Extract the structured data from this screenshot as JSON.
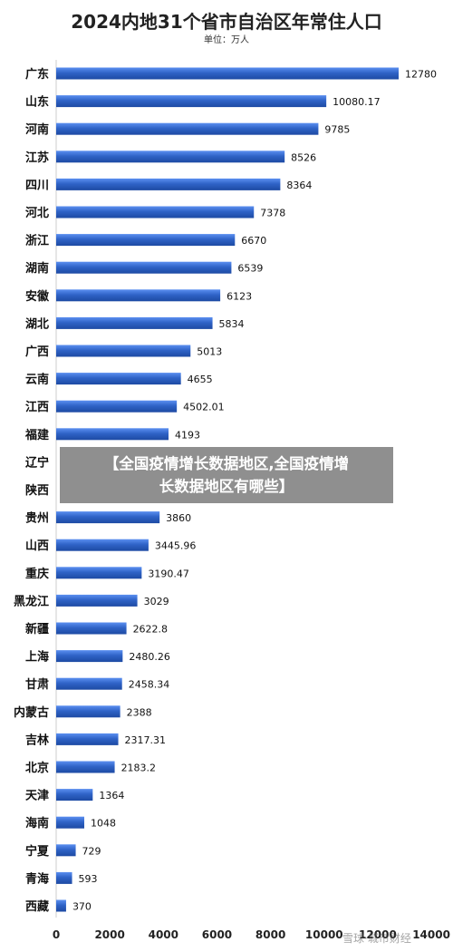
{
  "chart_data": {
    "type": "bar",
    "orientation": "horizontal",
    "title": "2024内地31个省市自治区年常住人口",
    "subtitle": "单位：万人",
    "categories": [
      "广东",
      "山东",
      "河南",
      "江苏",
      "四川",
      "河北",
      "浙江",
      "湖南",
      "安徽",
      "湖北",
      "广西",
      "云南",
      "江西",
      "福建",
      "辽宁",
      "陕西",
      "贵州",
      "山西",
      "重庆",
      "黑龙江",
      "新疆",
      "上海",
      "甘肃",
      "内蒙古",
      "吉林",
      "北京",
      "天津",
      "海南",
      "宁夏",
      "青海",
      "西藏"
    ],
    "values": [
      12780,
      10080.17,
      9785,
      8526,
      8364,
      7378,
      6670,
      6539,
      6123,
      5834,
      5013,
      4655,
      4502.01,
      4193,
      null,
      null,
      3860,
      3445.96,
      3190.47,
      3029,
      2622.8,
      2480.26,
      2458.34,
      2388,
      2317.31,
      2183.2,
      1364,
      1048,
      729,
      593,
      370
    ],
    "value_labels": [
      "12780",
      "10080.17",
      "9785",
      "8526",
      "8364",
      "7378",
      "6670",
      "6539",
      "6123",
      "5834",
      "5013",
      "4655",
      "4502.01",
      "4193",
      "",
      "",
      "3860",
      "3445.96",
      "3190.47",
      "3029",
      "2622.8",
      "2480.26",
      "2458.34",
      "2388",
      "2317.31",
      "2183.2",
      "1364",
      "1048",
      "729",
      "593",
      "370"
    ],
    "xlim": [
      0,
      14000
    ],
    "xticks": [
      0,
      2000,
      4000,
      6000,
      8000,
      10000,
      12000,
      14000
    ],
    "bar_color": "#2f63c7",
    "grid": false
  },
  "overlay": {
    "line1": "【全国疫情增长数据地区,全国疫情增",
    "line2": "长数据地区有哪些】"
  },
  "watermark": "雪球·城市财经"
}
